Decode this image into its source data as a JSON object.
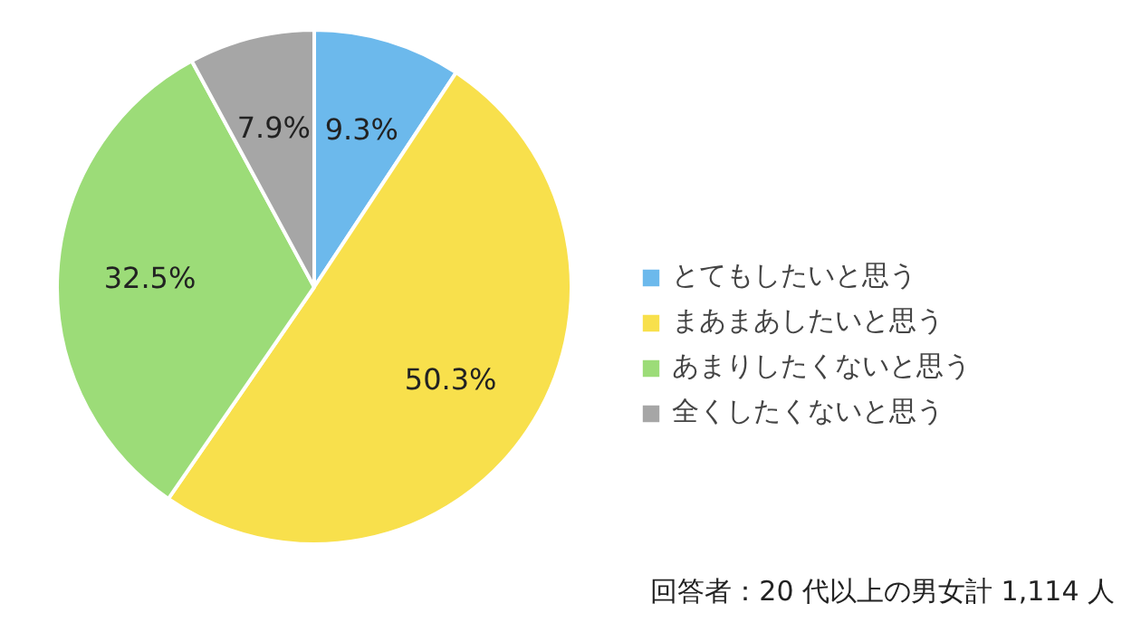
{
  "chart_data": {
    "type": "pie",
    "categories": [
      "とてもしたいと思う",
      "まあまあしたいと思う",
      "あまりしたくないと思う",
      "全くしたくないと思う"
    ],
    "values": [
      9.3,
      50.3,
      32.5,
      7.9
    ],
    "colors": [
      "#6cb9ec",
      "#f8e04c",
      "#9cdc78",
      "#a6a6a6"
    ],
    "value_labels": [
      "9.3%",
      "50.3%",
      "32.5%",
      "7.9%"
    ],
    "legend": "right",
    "annotations": [
      "回答者：20 代以上の男女計 1,114 人"
    ]
  }
}
